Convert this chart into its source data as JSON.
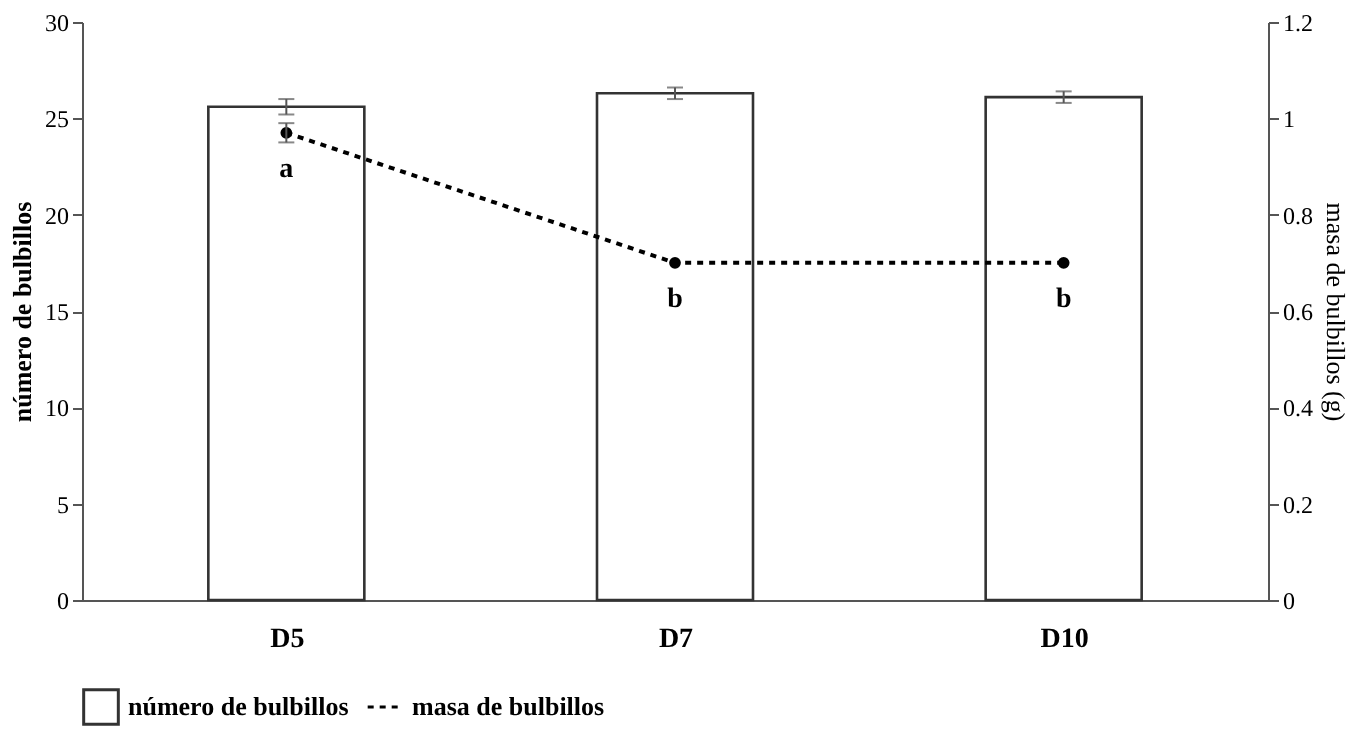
{
  "chart_data": {
    "type": "bar",
    "categories": [
      "D5",
      "D7",
      "D10"
    ],
    "ylabel": "número de bulbillos",
    "y2label": "masa de bulbillos  (g)",
    "ylim": [
      0,
      30
    ],
    "yticks": [
      0,
      5,
      10,
      15,
      20,
      25,
      30
    ],
    "y2lim": [
      0,
      1.2
    ],
    "y2ticks": [
      0,
      0.2,
      0.4,
      0.6,
      0.8,
      1,
      1.2
    ],
    "series": [
      {
        "name": "número de bulbillos",
        "color": "#ffffff",
        "values": [
          25.6,
          26.3,
          26.1
        ],
        "errors": [
          0.4,
          0.3,
          0.3
        ]
      },
      {
        "name": "masa de bulbillos",
        "type": "line",
        "axis": "y2",
        "color": "#000000",
        "line_style": "dashed",
        "marker": "circle",
        "values": [
          0.97,
          0.7,
          0.7
        ],
        "errors": [
          0.02,
          null,
          null
        ]
      }
    ],
    "annotations": [
      "a",
      "b",
      "b"
    ],
    "legend": "bottom",
    "grid": false
  }
}
